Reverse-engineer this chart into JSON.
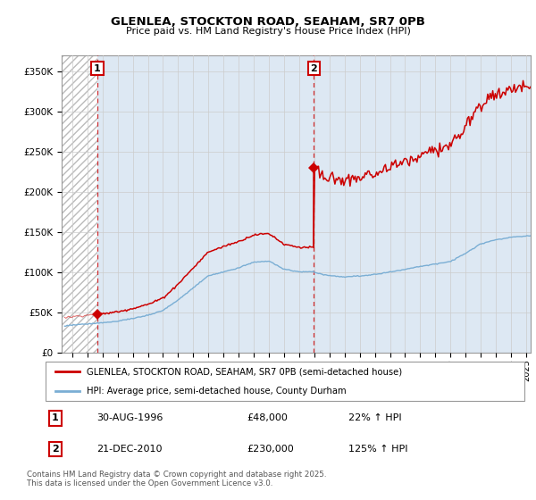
{
  "title": "GLENLEA, STOCKTON ROAD, SEAHAM, SR7 0PB",
  "subtitle": "Price paid vs. HM Land Registry's House Price Index (HPI)",
  "red_label": "GLENLEA, STOCKTON ROAD, SEAHAM, SR7 0PB (semi-detached house)",
  "blue_label": "HPI: Average price, semi-detached house, County Durham",
  "annotation1": {
    "num": "1",
    "date": "30-AUG-1996",
    "price": "£48,000",
    "hpi": "22% ↑ HPI",
    "x_year": 1996.66
  },
  "annotation2": {
    "num": "2",
    "date": "21-DEC-2010",
    "price": "£230,000",
    "hpi": "125% ↑ HPI",
    "x_year": 2010.97
  },
  "footer": "Contains HM Land Registry data © Crown copyright and database right 2025.\nThis data is licensed under the Open Government Licence v3.0.",
  "ylim": [
    0,
    370000
  ],
  "xlim_start": 1994.3,
  "xlim_end": 2025.3,
  "sale1_year": 1996.66,
  "sale1_price": 48000,
  "sale2_year": 2010.97,
  "sale2_price": 230000,
  "red_color": "#cc0000",
  "blue_color": "#7aaed4",
  "hatch_color": "#bbbbbb",
  "grid_color": "#cccccc",
  "bg_color": "#dde8f3"
}
